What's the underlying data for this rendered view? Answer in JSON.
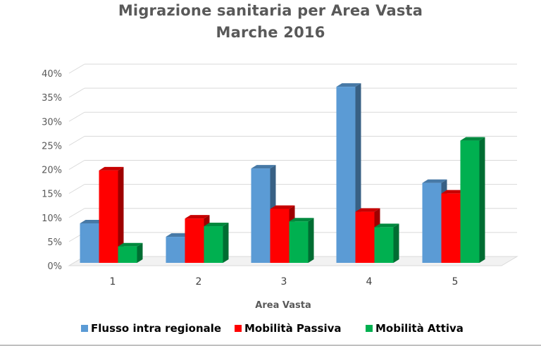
{
  "chart_data": {
    "type": "bar",
    "style": "3d-clustered-column",
    "title": "Migrazione sanitaria per Area Vasta",
    "subtitle": "Marche 2016",
    "xlabel": "Area Vasta",
    "ylabel": "",
    "categories": [
      "1",
      "2",
      "3",
      "4",
      "5"
    ],
    "ylim": [
      0,
      40
    ],
    "yticks": [
      "0%",
      "5%",
      "10%",
      "15%",
      "20%",
      "25%",
      "30%",
      "35%",
      "40%"
    ],
    "y_unit": "%",
    "grid": true,
    "legend_position": "bottom",
    "series": [
      {
        "name": "Flusso intra regionale",
        "color": "#5b9bd5",
        "values": [
          8.8,
          6.0,
          20.2,
          37.2,
          17.2
        ]
      },
      {
        "name": "Mobilità Passiva",
        "color": "#ff0000",
        "values": [
          19.8,
          9.8,
          11.8,
          11.2,
          15.0
        ]
      },
      {
        "name": "Mobilità  Attiva",
        "color": "#00b050",
        "values": [
          4.0,
          8.2,
          9.2,
          8.0,
          26.0
        ]
      }
    ]
  }
}
